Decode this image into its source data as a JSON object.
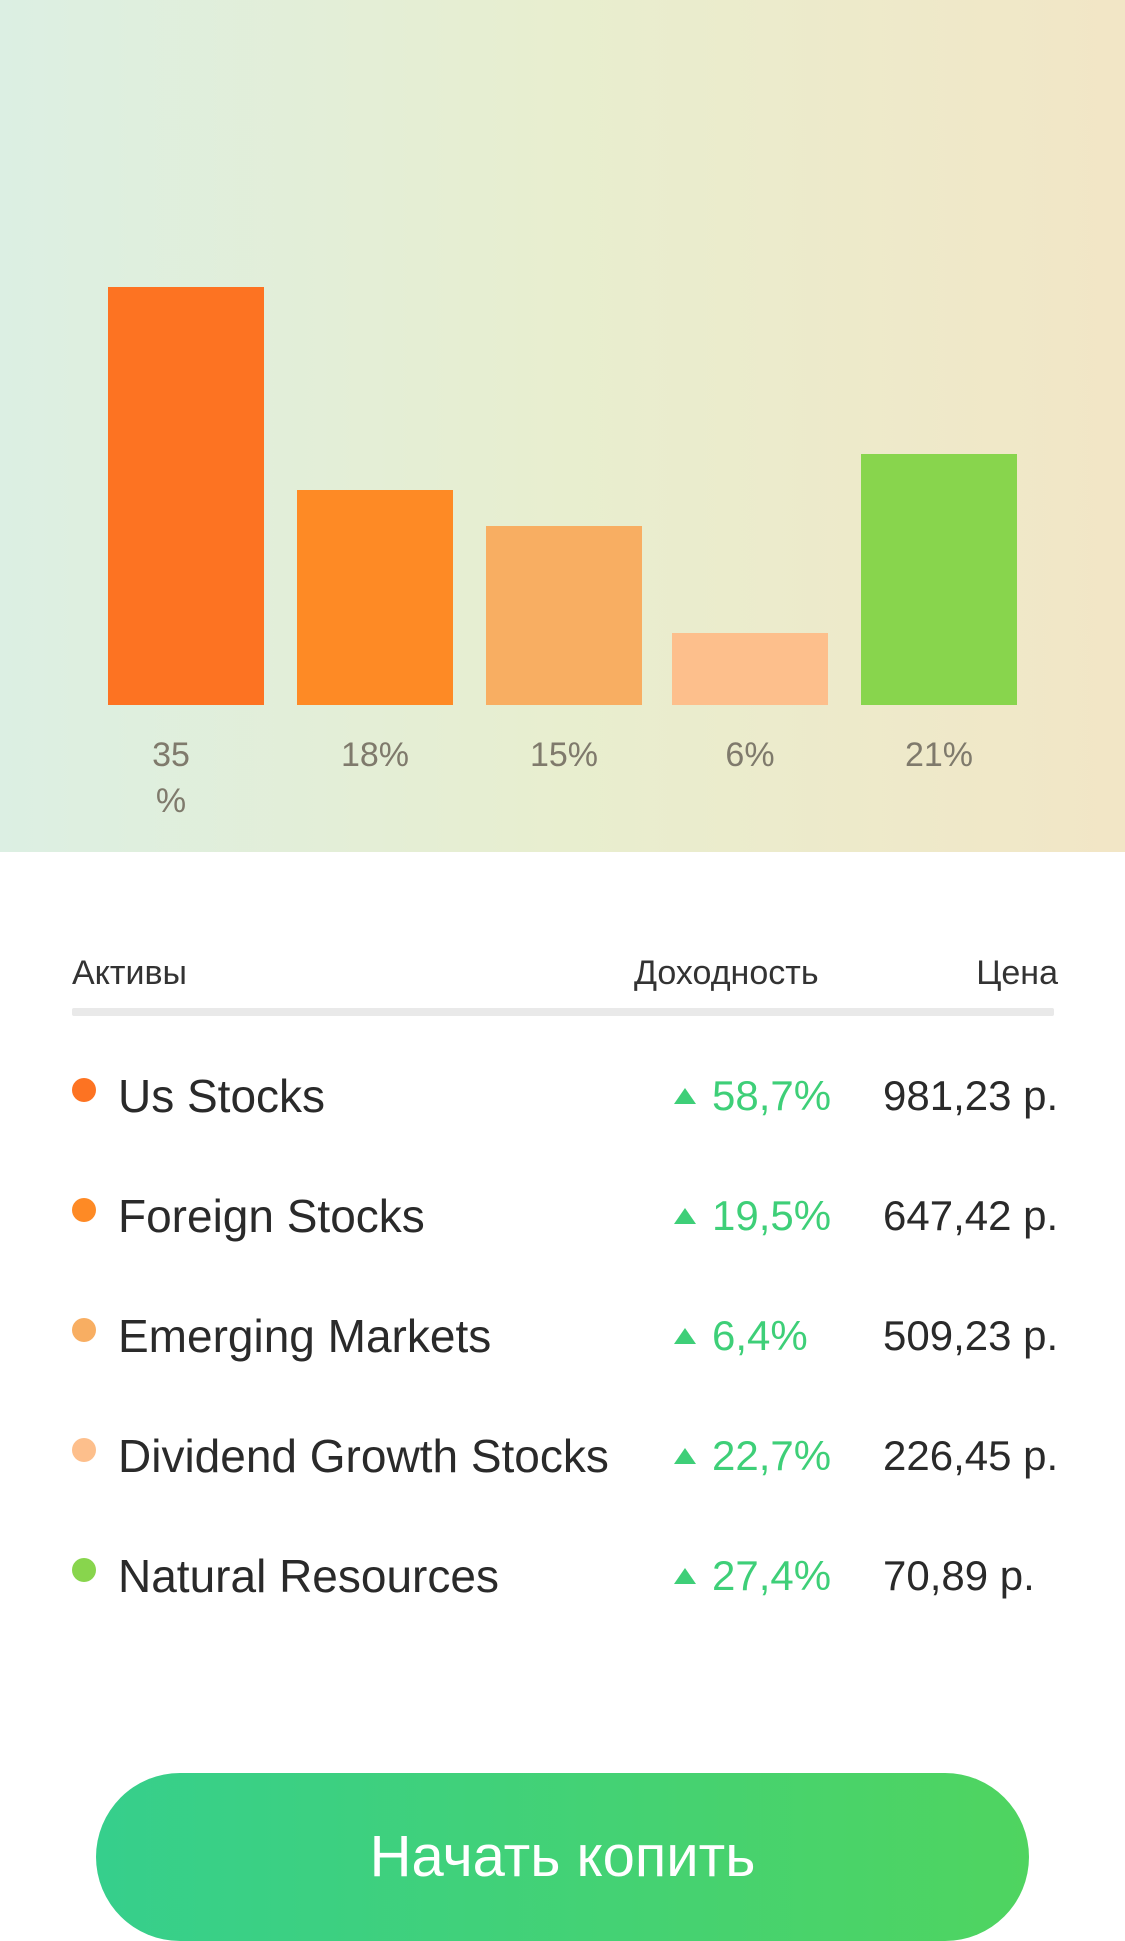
{
  "chart_data": {
    "type": "bar",
    "categories": [
      "Us Stocks",
      "Foreign Stocks",
      "Emerging Markets",
      "Dividend Growth Stocks",
      "Natural Resources"
    ],
    "values": [
      35,
      18,
      15,
      6,
      21
    ],
    "labels": [
      "35\n%",
      "18%",
      "15%",
      "6%",
      "21%"
    ],
    "colors": [
      "#fd7322",
      "#fe8a25",
      "#f8ae62",
      "#fdbf8c",
      "#88d54d"
    ],
    "ylim": [
      0,
      40
    ]
  },
  "table": {
    "headers": {
      "assets": "Активы",
      "yield": "Доходность",
      "price": "Цена"
    },
    "rows": [
      {
        "color": "#fd7322",
        "name": "Us Stocks",
        "yield": "58,7%",
        "price": "981,23 р."
      },
      {
        "color": "#fe8a25",
        "name": "Foreign Stocks",
        "yield": "19,5%",
        "price": "647,42 р."
      },
      {
        "color": "#f8ae62",
        "name": "Emerging Markets",
        "yield": "6,4%",
        "price": "509,23 р."
      },
      {
        "color": "#fdbf8c",
        "name": "Dividend Growth Stocks",
        "yield": "22,7%",
        "price": "226,45 р."
      },
      {
        "color": "#88d54d",
        "name": "Natural Resources",
        "yield": "27,4%",
        "price": "70,89 р."
      }
    ]
  },
  "cta": {
    "label": "Начать копить"
  }
}
